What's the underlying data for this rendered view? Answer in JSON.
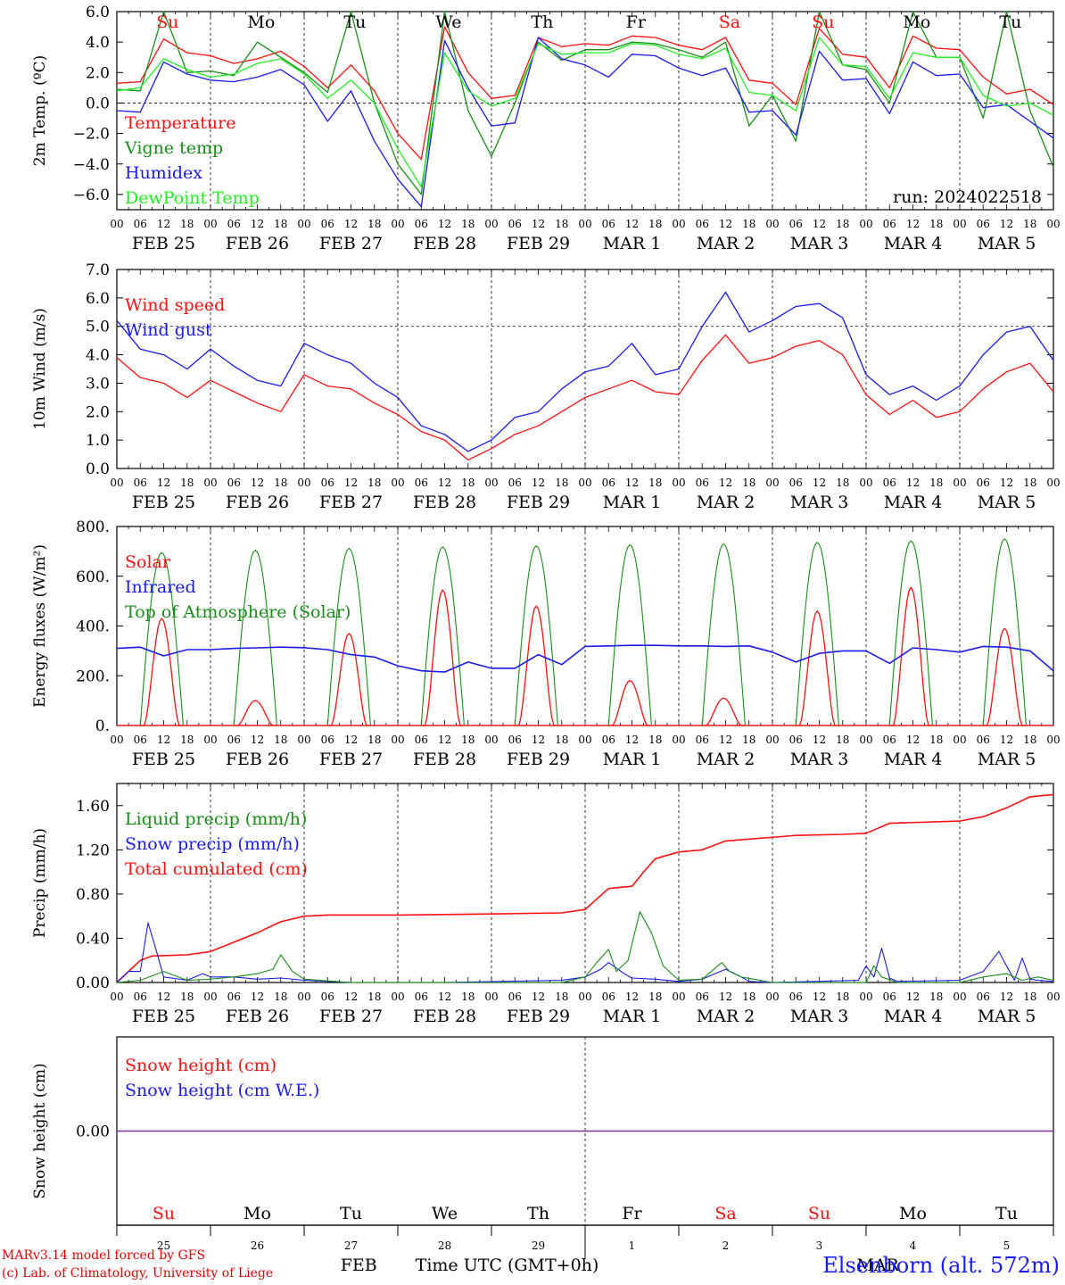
{
  "colors": {
    "red": "#ff1010",
    "green": "#1a8c1a",
    "blue": "#1a1aee",
    "lightgreen": "#22ee22",
    "purple": "#8030a0",
    "black": "#000000"
  },
  "chart_data": [
    {
      "type": "line",
      "id": "temp",
      "ylabel": "2m Temp. (ºC)",
      "ylim": [
        -7,
        6
      ],
      "yticks": [
        {
          "v": 6,
          "t": "6.0"
        },
        {
          "v": 4,
          "t": "4.0"
        },
        {
          "v": 2,
          "t": "2.0"
        },
        {
          "v": 0,
          "t": "0.0"
        },
        {
          "v": -2,
          "t": "−2.0"
        },
        {
          "v": -4,
          "t": "−4.0"
        },
        {
          "v": -6,
          "t": "−6.0"
        }
      ],
      "hlines": [
        0
      ],
      "day_labels_top": [
        "Su",
        "Mo",
        "Tu",
        "We",
        "Th",
        "Fr",
        "Sa",
        "Su",
        "Mo",
        "Tu"
      ],
      "annotation": "run: 2024022518",
      "legend": [
        "Temperature",
        "Vigne temp",
        "Humidex",
        "DewPoint Temp"
      ],
      "x_hours": [
        0,
        6,
        12,
        18,
        24,
        30,
        36,
        42,
        48,
        54,
        60,
        66,
        72,
        78,
        84,
        90,
        96,
        102,
        108,
        114,
        120,
        126,
        132,
        138,
        144,
        150,
        156,
        162,
        168,
        174,
        180,
        186,
        192,
        198,
        204,
        210,
        216,
        222,
        228,
        234,
        240
      ],
      "series": [
        {
          "name": "Temperature",
          "color": "red",
          "values": [
            1.3,
            1.4,
            4.2,
            3.3,
            3.1,
            2.6,
            2.9,
            3.4,
            2.4,
            1.0,
            2.5,
            0.8,
            -2.0,
            -3.7,
            5.0,
            2.0,
            0.3,
            0.5,
            4.3,
            3.7,
            3.9,
            3.8,
            4.4,
            4.3,
            3.8,
            3.5,
            4.3,
            1.5,
            1.3,
            -0.1,
            4.9,
            3.2,
            3.0,
            1.0,
            4.4,
            3.6,
            3.5,
            1.7,
            0.6,
            0.9,
            -0.1
          ]
        },
        {
          "name": "Vigne temp",
          "color": "green",
          "values": [
            0.9,
            0.8,
            6.0,
            2.0,
            2.1,
            1.8,
            4.0,
            3.0,
            2.0,
            0.7,
            6.0,
            0.0,
            -4.0,
            -6.0,
            6.0,
            -0.5,
            -3.5,
            0.0,
            4.0,
            2.8,
            3.5,
            3.5,
            4.0,
            3.9,
            3.5,
            3.0,
            4.0,
            -1.5,
            0.5,
            -2.5,
            6.0,
            2.5,
            2.2,
            0.0,
            6.0,
            3.0,
            3.0,
            -1.0,
            6.0,
            -0.5,
            -4.2
          ]
        },
        {
          "name": "Humidex",
          "color": "blue",
          "values": [
            -0.5,
            -0.6,
            2.7,
            1.9,
            1.5,
            1.4,
            1.7,
            2.2,
            1.2,
            -1.2,
            0.8,
            -2.5,
            -5.0,
            -6.8,
            4.1,
            1.0,
            -1.5,
            -1.3,
            4.3,
            2.9,
            2.5,
            1.7,
            3.2,
            3.1,
            2.3,
            1.8,
            2.3,
            -0.6,
            -0.5,
            -2.1,
            3.4,
            1.5,
            1.6,
            -0.7,
            2.7,
            1.8,
            1.9,
            -0.3,
            -0.1,
            -1.2,
            -2.3
          ]
        },
        {
          "name": "DewPoint Temp",
          "color": "lightgreen",
          "values": [
            0.8,
            1.0,
            2.9,
            2.2,
            1.7,
            1.9,
            2.6,
            2.9,
            1.9,
            0.3,
            1.5,
            0.0,
            -3.0,
            -5.5,
            3.3,
            0.8,
            -0.2,
            0.3,
            3.9,
            3.2,
            3.3,
            3.3,
            3.9,
            3.8,
            3.2,
            2.9,
            3.6,
            0.7,
            0.5,
            -0.5,
            4.3,
            2.5,
            2.4,
            0.3,
            3.3,
            3.0,
            3.0,
            0.5,
            -0.2,
            0.0,
            -0.8
          ]
        }
      ]
    },
    {
      "type": "line",
      "id": "wind",
      "ylabel": "10m Wind (m/s)",
      "ylim": [
        0,
        7
      ],
      "yticks": [
        {
          "v": 0,
          "t": "0.0"
        },
        {
          "v": 1,
          "t": "1.0"
        },
        {
          "v": 2,
          "t": "2.0"
        },
        {
          "v": 3,
          "t": "3.0"
        },
        {
          "v": 4,
          "t": "4.0"
        },
        {
          "v": 5,
          "t": "5.0"
        },
        {
          "v": 6,
          "t": "6.0"
        },
        {
          "v": 7,
          "t": "7.0"
        }
      ],
      "hlines": [
        5
      ],
      "legend": [
        "Wind speed",
        "Wind gust"
      ],
      "x_hours": [
        0,
        6,
        12,
        18,
        24,
        30,
        36,
        42,
        48,
        54,
        60,
        66,
        72,
        78,
        84,
        90,
        96,
        102,
        108,
        114,
        120,
        126,
        132,
        138,
        144,
        150,
        156,
        162,
        168,
        174,
        180,
        186,
        192,
        198,
        204,
        210,
        216,
        222,
        228,
        234,
        240
      ],
      "series": [
        {
          "name": "Wind speed",
          "color": "red",
          "values": [
            3.9,
            3.2,
            3.0,
            2.5,
            3.1,
            2.7,
            2.3,
            2.0,
            3.3,
            2.9,
            2.8,
            2.3,
            1.9,
            1.3,
            1.0,
            0.3,
            0.7,
            1.2,
            1.5,
            2.0,
            2.5,
            2.8,
            3.1,
            2.7,
            2.6,
            3.8,
            4.7,
            3.7,
            3.9,
            4.3,
            4.5,
            4.0,
            2.6,
            1.9,
            2.4,
            1.8,
            2.0,
            2.8,
            3.4,
            3.7,
            2.7
          ]
        },
        {
          "name": "Wind gust",
          "color": "blue",
          "values": [
            5.2,
            4.2,
            4.0,
            3.5,
            4.2,
            3.6,
            3.1,
            2.9,
            4.4,
            4.0,
            3.7,
            3.0,
            2.5,
            1.5,
            1.2,
            0.6,
            1.0,
            1.8,
            2.0,
            2.8,
            3.4,
            3.6,
            4.4,
            3.3,
            3.5,
            5.0,
            6.2,
            4.8,
            5.2,
            5.7,
            5.8,
            5.3,
            3.3,
            2.6,
            2.9,
            2.4,
            2.9,
            4.0,
            4.8,
            5.0,
            3.8
          ]
        }
      ]
    },
    {
      "type": "line",
      "id": "energy",
      "ylabel": "Energy fluxes (W/m²)",
      "ylim": [
        0,
        800
      ],
      "yticks": [
        {
          "v": 0,
          "t": "0."
        },
        {
          "v": 200,
          "t": "200."
        },
        {
          "v": 400,
          "t": "400."
        },
        {
          "v": 600,
          "t": "600."
        },
        {
          "v": 800,
          "t": "800."
        }
      ],
      "hlines": [],
      "legend": [
        "Solar",
        "Infrared",
        "Top of Atmosphere (Solar)"
      ],
      "toa_peaks": [
        695,
        705,
        712,
        718,
        722,
        726,
        730,
        736,
        742,
        750
      ],
      "solar_peaks": [
        430,
        100,
        370,
        545,
        480,
        180,
        110,
        460,
        555,
        390
      ],
      "infrared_hours": [
        0,
        6,
        12,
        18,
        24,
        30,
        36,
        42,
        48,
        54,
        60,
        66,
        72,
        78,
        84,
        90,
        96,
        102,
        108,
        114,
        120,
        126,
        132,
        138,
        144,
        150,
        156,
        162,
        168,
        174,
        180,
        186,
        192,
        198,
        204,
        210,
        216,
        222,
        228,
        234,
        240
      ],
      "infrared_values": [
        310,
        315,
        280,
        305,
        305,
        310,
        312,
        315,
        313,
        305,
        285,
        275,
        240,
        220,
        215,
        255,
        230,
        230,
        285,
        245,
        318,
        320,
        322,
        322,
        320,
        320,
        318,
        320,
        295,
        255,
        290,
        300,
        300,
        250,
        312,
        305,
        295,
        318,
        315,
        300,
        220
      ],
      "series_names": [
        "Solar",
        "Infrared",
        "Top of Atmosphere (Solar)"
      ]
    },
    {
      "type": "line",
      "id": "precip",
      "ylabel": "Precip (mm/h)",
      "ylim": [
        0,
        1.8
      ],
      "yticks": [
        {
          "v": 0,
          "t": "0.00"
        },
        {
          "v": 0.4,
          "t": "0.40"
        },
        {
          "v": 0.8,
          "t": "0.80"
        },
        {
          "v": 1.2,
          "t": "1.20"
        },
        {
          "v": 1.6,
          "t": "1.60"
        }
      ],
      "hlines": [],
      "legend": [
        "Liquid precip (mm/h)",
        "Snow precip (mm/h)",
        "Total cumulated (cm)"
      ],
      "series": [
        {
          "name": "Total cumulated (cm)",
          "color": "red",
          "x": [
            0,
            6,
            9,
            18,
            24,
            36,
            42,
            48,
            54,
            72,
            96,
            114,
            120,
            126,
            132,
            135,
            138,
            144,
            150,
            156,
            174,
            186,
            192,
            198,
            216,
            222,
            228,
            234,
            240
          ],
          "values": [
            0.0,
            0.2,
            0.24,
            0.25,
            0.28,
            0.45,
            0.55,
            0.6,
            0.61,
            0.61,
            0.62,
            0.63,
            0.66,
            0.85,
            0.87,
            1.0,
            1.12,
            1.18,
            1.2,
            1.28,
            1.33,
            1.34,
            1.35,
            1.44,
            1.46,
            1.5,
            1.58,
            1.68,
            1.7
          ]
        },
        {
          "name": "Snow precip (mm/h)",
          "color": "blue",
          "x": [
            0,
            3,
            6,
            8,
            10,
            12,
            18,
            22,
            24,
            30,
            36,
            42,
            48,
            60,
            84,
            114,
            120,
            124,
            126,
            130,
            132,
            138,
            144,
            150,
            156,
            160,
            162,
            168,
            190,
            192,
            194,
            196,
            198,
            200,
            216,
            222,
            226,
            228,
            230,
            232,
            234,
            236,
            240
          ],
          "values": [
            0,
            0.1,
            0.1,
            0.54,
            0.3,
            0.05,
            0.02,
            0.08,
            0.05,
            0.05,
            0.03,
            0.04,
            0.02,
            0.0,
            0.0,
            0.02,
            0.05,
            0.12,
            0.18,
            0.08,
            0.04,
            0.03,
            0.01,
            0.03,
            0.12,
            0.05,
            0.01,
            0.0,
            0.02,
            0.15,
            0.05,
            0.31,
            0.04,
            0.01,
            0.02,
            0.1,
            0.28,
            0.15,
            0.02,
            0.22,
            0.03,
            0.02,
            0.01
          ]
        },
        {
          "name": "Liquid precip (mm/h)",
          "color": "green",
          "x": [
            0,
            6,
            12,
            18,
            24,
            30,
            36,
            40,
            42,
            45,
            48,
            60,
            114,
            120,
            123,
            126,
            128,
            131,
            134,
            137,
            140,
            144,
            150,
            155,
            157,
            160,
            168,
            192,
            194,
            196,
            200,
            216,
            222,
            228,
            232,
            236,
            240
          ],
          "values": [
            0,
            0.02,
            0.1,
            0.02,
            0.03,
            0.05,
            0.08,
            0.12,
            0.25,
            0.1,
            0.03,
            0.0,
            0.0,
            0.05,
            0.18,
            0.3,
            0.1,
            0.2,
            0.64,
            0.45,
            0.15,
            0.02,
            0.03,
            0.18,
            0.1,
            0.05,
            0.0,
            0.0,
            0.15,
            0.05,
            0.0,
            0.0,
            0.05,
            0.08,
            0.02,
            0.05,
            0.02
          ]
        }
      ]
    },
    {
      "type": "line",
      "id": "snow",
      "ylabel": "Snow height (cm)",
      "ylim": [
        -1,
        1
      ],
      "yticks": [
        {
          "v": 0,
          "t": "0.00"
        }
      ],
      "hlines": [],
      "legend": [
        "Snow height (cm)",
        "Snow height (cm W.E.)"
      ],
      "series": [
        {
          "name": "Snow height (cm)",
          "color": "red",
          "x": [
            0,
            240
          ],
          "values": [
            0,
            0
          ]
        },
        {
          "name": "Snow height (cm W.E.)",
          "color": "blue",
          "x": [
            0,
            240
          ],
          "values": [
            0,
            0
          ]
        }
      ],
      "day_names": [
        "Su",
        "Mo",
        "Tu",
        "We",
        "Th",
        "Fr",
        "Sa",
        "Su",
        "Mo",
        "Tu"
      ],
      "day_name_colors": [
        "red",
        "black",
        "black",
        "black",
        "black",
        "black",
        "red",
        "red",
        "black",
        "black"
      ],
      "day_numbers": [
        "25",
        "26",
        "27",
        "28",
        "29",
        "1",
        "2",
        "3",
        "4",
        "5"
      ],
      "month_labels": [
        "FEB",
        "MAR"
      ]
    }
  ],
  "axis": {
    "hour_labels": [
      "00",
      "06",
      "12",
      "18"
    ],
    "hour_label_end": "00",
    "date_labels": [
      "FEB 25",
      "FEB 26",
      "FEB 27",
      "FEB 28",
      "FEB 29",
      "MAR   1",
      "MAR   2",
      "MAR   3",
      "MAR   4",
      "MAR   5"
    ],
    "xlabel": "Time UTC (GMT+0h)"
  },
  "footer": {
    "credit_line1": "MARv3.14 model forced by GFS",
    "credit_line2": "(c) Lab. of Climatology, University of Liege",
    "station": "Elsenborn (alt. 572m)"
  }
}
